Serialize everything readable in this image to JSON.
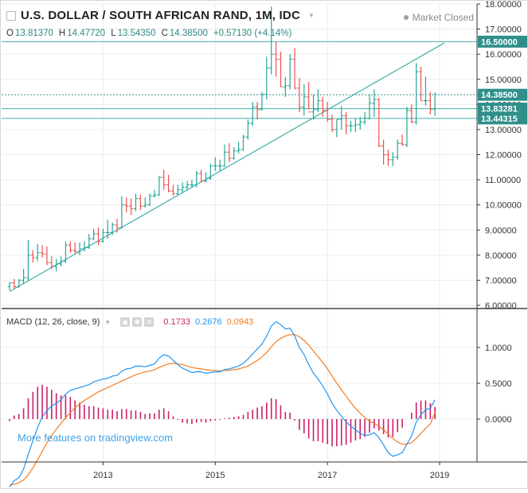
{
  "header": {
    "title": "U.S. DOLLAR / SOUTH AFRICAN RAND, 1M, IDC",
    "status": "Market Closed",
    "ohlc": {
      "o_label": "O",
      "o_value": "13.81370",
      "h_label": "H",
      "h_value": "14.47720",
      "l_label": "L",
      "l_value": "13.54350",
      "c_label": "C",
      "c_value": "14.38500",
      "change": "+0.57130 (+4.14%)"
    }
  },
  "macd_header": {
    "label": "MACD (12, 26, close, 9)",
    "histogram_value": "0.1733",
    "macd_value": "0.2676",
    "signal_value": "0.0943"
  },
  "watermark": "More features on tradingview.com",
  "colors": {
    "up": "#26a69a",
    "down": "#ef5350",
    "trend": "#3fb0a6",
    "macd": "#2196f3",
    "signal": "#f57c20",
    "histogram": "#cc1f6a",
    "label_bg": "#2f8f8a",
    "grid": "#ececec"
  },
  "icons": {
    "collapse": "collapse-icon",
    "eye": "eye-icon",
    "settings": "gear-icon",
    "close": "close-icon"
  },
  "chart_data": [
    {
      "type": "candlestick",
      "title": "U.S. DOLLAR / SOUTH AFRICAN RAND, 1M, IDC",
      "x": [
        "2011-05",
        "2011-06",
        "2011-07",
        "2011-08",
        "2011-09",
        "2011-10",
        "2011-11",
        "2011-12",
        "2012-01",
        "2012-02",
        "2012-03",
        "2012-04",
        "2012-05",
        "2012-06",
        "2012-07",
        "2012-08",
        "2012-09",
        "2012-10",
        "2012-11",
        "2012-12",
        "2013-01",
        "2013-02",
        "2013-03",
        "2013-04",
        "2013-05",
        "2013-06",
        "2013-07",
        "2013-08",
        "2013-09",
        "2013-10",
        "2013-11",
        "2013-12",
        "2014-01",
        "2014-02",
        "2014-03",
        "2014-04",
        "2014-05",
        "2014-06",
        "2014-07",
        "2014-08",
        "2014-09",
        "2014-10",
        "2014-11",
        "2014-12",
        "2015-01",
        "2015-02",
        "2015-03",
        "2015-04",
        "2015-05",
        "2015-06",
        "2015-07",
        "2015-08",
        "2015-09",
        "2015-10",
        "2015-11",
        "2015-12",
        "2016-01",
        "2016-02",
        "2016-03",
        "2016-04",
        "2016-05",
        "2016-06",
        "2016-07",
        "2016-08",
        "2016-09",
        "2016-10",
        "2016-11",
        "2016-12",
        "2017-01",
        "2017-02",
        "2017-03",
        "2017-04",
        "2017-05",
        "2017-06",
        "2017-07",
        "2017-08",
        "2017-09",
        "2017-10",
        "2017-11",
        "2017-12",
        "2018-01",
        "2018-02",
        "2018-03",
        "2018-04",
        "2018-05",
        "2018-06",
        "2018-07",
        "2018-08",
        "2018-09",
        "2018-10",
        "2018-11",
        "2018-12"
      ],
      "open": [
        6.75,
        6.9,
        6.75,
        7.0,
        7.1,
        8.0,
        7.9,
        8.1,
        8.05,
        7.7,
        7.55,
        7.65,
        7.75,
        8.4,
        8.2,
        8.15,
        8.25,
        8.3,
        8.65,
        8.85,
        8.55,
        8.9,
        8.9,
        9.2,
        9.1,
        10.0,
        9.95,
        9.85,
        10.25,
        9.95,
        10.0,
        10.35,
        10.4,
        11.1,
        10.8,
        10.55,
        10.45,
        10.6,
        10.7,
        10.8,
        10.8,
        11.25,
        10.95,
        11.05,
        11.55,
        11.55,
        11.55,
        12.1,
        11.85,
        12.15,
        12.2,
        12.7,
        13.25,
        13.9,
        13.8,
        14.4,
        15.45,
        16.0,
        15.8,
        14.7,
        14.75,
        15.8,
        14.65,
        13.9,
        14.3,
        13.7,
        13.8,
        14.15,
        13.75,
        13.4,
        13.0,
        13.4,
        13.55,
        13.15,
        13.15,
        13.2,
        13.3,
        13.45,
        14.05,
        14.2,
        12.35,
        12.0,
        11.8,
        11.9,
        12.45,
        12.4,
        13.75,
        13.3,
        15.3,
        14.15,
        14.15,
        13.81
      ],
      "high": [
        6.9,
        7.05,
        7.05,
        7.45,
        8.6,
        8.2,
        8.45,
        8.4,
        8.35,
        7.95,
        7.85,
        7.95,
        8.55,
        8.55,
        8.5,
        8.5,
        8.55,
        8.85,
        9.05,
        9.1,
        9.05,
        9.4,
        9.3,
        9.45,
        10.35,
        10.3,
        10.25,
        10.45,
        10.4,
        10.3,
        10.45,
        10.6,
        11.15,
        11.4,
        11.2,
        10.8,
        10.8,
        10.9,
        10.95,
        11.0,
        11.35,
        11.4,
        11.3,
        11.65,
        11.9,
        11.8,
        12.4,
        12.45,
        12.3,
        12.5,
        12.8,
        13.4,
        14.1,
        14.1,
        14.5,
        15.9,
        17.9,
        16.5,
        16.1,
        15.1,
        16.0,
        16.25,
        15.05,
        14.8,
        14.9,
        14.4,
        14.6,
        14.3,
        14.1,
        13.6,
        13.4,
        13.95,
        13.7,
        13.35,
        13.45,
        13.5,
        13.7,
        14.4,
        14.6,
        14.25,
        12.6,
        12.2,
        12.1,
        12.6,
        12.8,
        13.9,
        14.0,
        15.65,
        15.5,
        15.1,
        14.5,
        14.48
      ],
      "low": [
        6.6,
        6.65,
        6.7,
        6.85,
        7.0,
        7.7,
        7.75,
        7.9,
        7.6,
        7.45,
        7.35,
        7.55,
        7.7,
        8.1,
        8.05,
        8.0,
        8.15,
        8.25,
        8.6,
        8.4,
        8.5,
        8.65,
        8.8,
        8.9,
        9.05,
        9.7,
        9.6,
        9.75,
        9.8,
        9.9,
        9.95,
        10.3,
        10.35,
        10.6,
        10.5,
        10.35,
        10.4,
        10.5,
        10.6,
        10.7,
        10.7,
        10.9,
        10.9,
        11.0,
        11.35,
        11.35,
        11.5,
        11.7,
        11.8,
        12.05,
        12.15,
        12.6,
        13.15,
        13.4,
        13.75,
        14.2,
        15.2,
        15.1,
        14.7,
        14.3,
        14.6,
        14.6,
        13.7,
        13.55,
        13.8,
        13.4,
        13.7,
        13.5,
        13.3,
        12.9,
        12.7,
        13.0,
        12.8,
        12.9,
        12.9,
        13.0,
        13.2,
        13.4,
        13.5,
        12.3,
        11.6,
        11.55,
        11.55,
        11.8,
        12.35,
        12.3,
        13.25,
        13.2,
        14.15,
        13.95,
        13.6,
        13.54
      ],
      "close": [
        6.9,
        6.75,
        7.0,
        7.1,
        8.0,
        7.9,
        8.1,
        8.05,
        7.7,
        7.55,
        7.65,
        7.75,
        8.4,
        8.2,
        8.15,
        8.25,
        8.3,
        8.65,
        8.85,
        8.55,
        8.9,
        8.9,
        9.2,
        9.1,
        10.0,
        9.95,
        9.85,
        10.25,
        9.95,
        10.0,
        10.35,
        10.4,
        11.1,
        10.8,
        10.55,
        10.45,
        10.6,
        10.7,
        10.8,
        10.8,
        11.25,
        10.95,
        11.05,
        11.55,
        11.55,
        11.55,
        12.1,
        11.85,
        12.15,
        12.2,
        12.7,
        13.25,
        13.9,
        13.8,
        14.4,
        15.45,
        16.0,
        15.8,
        14.7,
        14.75,
        15.8,
        14.65,
        13.9,
        14.3,
        13.7,
        13.8,
        14.15,
        13.75,
        13.4,
        13.0,
        13.4,
        13.55,
        13.15,
        13.15,
        13.2,
        13.3,
        13.45,
        14.05,
        14.2,
        12.35,
        12.0,
        11.8,
        11.9,
        12.45,
        12.4,
        13.75,
        13.3,
        15.3,
        14.15,
        14.15,
        13.81,
        14.39
      ],
      "ylim": [
        6.0,
        18.0
      ],
      "y_ticks": [
        "6.00000",
        "7.00000",
        "8.00000",
        "9.00000",
        "10.00000",
        "11.00000",
        "12.00000",
        "13.00000",
        "14.00000",
        "15.00000",
        "16.00000",
        "17.00000",
        "18.00000"
      ],
      "y_tick_values": [
        6,
        7,
        8,
        9,
        10,
        11,
        12,
        13,
        14,
        15,
        16,
        17,
        18
      ],
      "x_ticks": [
        "2013",
        "2015",
        "2017",
        "2019"
      ],
      "x_tick_dates": [
        "2013-01",
        "2015-01",
        "2017-01",
        "2019-01"
      ],
      "price_lines": [
        {
          "value": 16.5,
          "label": "16.50000",
          "style": "solid"
        },
        {
          "value": 14.385,
          "label": "14.38500",
          "style": "dotted"
        },
        {
          "value": 13.83281,
          "label": "13.83281",
          "style": "solid"
        },
        {
          "value": 13.44315,
          "label": "13.44315",
          "style": "solid"
        }
      ],
      "trendline": {
        "from": [
          "2011-05",
          6.55
        ],
        "to": [
          "2019-02",
          16.45
        ]
      }
    },
    {
      "type": "macd",
      "title": "MACD (12, 26, close, 9)",
      "x_ref": "same as candlestick",
      "macd": [
        -0.95,
        -0.86,
        -0.82,
        -0.7,
        -0.49,
        -0.3,
        -0.12,
        0.03,
        0.12,
        0.18,
        0.22,
        0.27,
        0.35,
        0.4,
        0.42,
        0.44,
        0.46,
        0.48,
        0.52,
        0.54,
        0.56,
        0.57,
        0.6,
        0.61,
        0.67,
        0.7,
        0.71,
        0.74,
        0.74,
        0.73,
        0.75,
        0.77,
        0.85,
        0.9,
        0.88,
        0.82,
        0.76,
        0.71,
        0.68,
        0.65,
        0.66,
        0.66,
        0.64,
        0.65,
        0.66,
        0.66,
        0.69,
        0.7,
        0.72,
        0.74,
        0.78,
        0.84,
        0.91,
        0.98,
        1.05,
        1.16,
        1.3,
        1.36,
        1.32,
        1.26,
        1.27,
        1.16,
        1.0,
        0.9,
        0.76,
        0.64,
        0.56,
        0.46,
        0.35,
        0.22,
        0.12,
        0.04,
        -0.04,
        -0.1,
        -0.15,
        -0.2,
        -0.23,
        -0.22,
        -0.19,
        -0.26,
        -0.36,
        -0.47,
        -0.52,
        -0.5,
        -0.47,
        -0.35,
        -0.24,
        -0.04,
        0.06,
        0.13,
        0.15,
        0.27
      ],
      "signal": [
        -0.92,
        -0.91,
        -0.89,
        -0.85,
        -0.78,
        -0.68,
        -0.57,
        -0.45,
        -0.33,
        -0.23,
        -0.14,
        -0.06,
        0.02,
        0.09,
        0.16,
        0.21,
        0.26,
        0.3,
        0.34,
        0.38,
        0.41,
        0.44,
        0.47,
        0.5,
        0.53,
        0.56,
        0.59,
        0.62,
        0.64,
        0.66,
        0.67,
        0.69,
        0.72,
        0.75,
        0.77,
        0.78,
        0.77,
        0.76,
        0.74,
        0.72,
        0.71,
        0.7,
        0.69,
        0.68,
        0.68,
        0.67,
        0.68,
        0.68,
        0.69,
        0.7,
        0.72,
        0.74,
        0.78,
        0.82,
        0.87,
        0.93,
        1.01,
        1.08,
        1.13,
        1.16,
        1.18,
        1.18,
        1.15,
        1.1,
        1.03,
        0.95,
        0.87,
        0.79,
        0.7,
        0.6,
        0.5,
        0.41,
        0.32,
        0.23,
        0.15,
        0.08,
        0.02,
        -0.03,
        -0.06,
        -0.1,
        -0.15,
        -0.21,
        -0.27,
        -0.32,
        -0.35,
        -0.35,
        -0.33,
        -0.27,
        -0.2,
        -0.13,
        -0.07,
        0.09
      ],
      "histogram": [
        -0.03,
        0.05,
        0.07,
        0.15,
        0.29,
        0.38,
        0.45,
        0.48,
        0.45,
        0.41,
        0.36,
        0.33,
        0.33,
        0.31,
        0.26,
        0.23,
        0.2,
        0.18,
        0.18,
        0.16,
        0.15,
        0.13,
        0.13,
        0.11,
        0.14,
        0.14,
        0.12,
        0.12,
        0.1,
        0.07,
        0.08,
        0.08,
        0.13,
        0.15,
        0.11,
        0.04,
        -0.01,
        -0.05,
        -0.06,
        -0.07,
        -0.05,
        -0.04,
        -0.05,
        -0.03,
        -0.02,
        -0.01,
        0.01,
        0.02,
        0.03,
        0.04,
        0.06,
        0.1,
        0.13,
        0.16,
        0.18,
        0.23,
        0.29,
        0.28,
        0.19,
        0.1,
        0.09,
        -0.02,
        -0.15,
        -0.2,
        -0.27,
        -0.31,
        -0.31,
        -0.33,
        -0.35,
        -0.38,
        -0.38,
        -0.37,
        -0.36,
        -0.33,
        -0.3,
        -0.28,
        -0.25,
        -0.19,
        -0.13,
        -0.16,
        -0.21,
        -0.26,
        -0.25,
        -0.18,
        -0.12,
        0.0,
        0.09,
        0.23,
        0.26,
        0.26,
        0.22,
        0.17
      ],
      "ylim": [
        -0.6,
        1.5
      ],
      "y_ticks": [
        "0.0000",
        "0.5000",
        "1.0000"
      ],
      "y_tick_values": [
        0,
        0.5,
        1.0
      ]
    }
  ]
}
